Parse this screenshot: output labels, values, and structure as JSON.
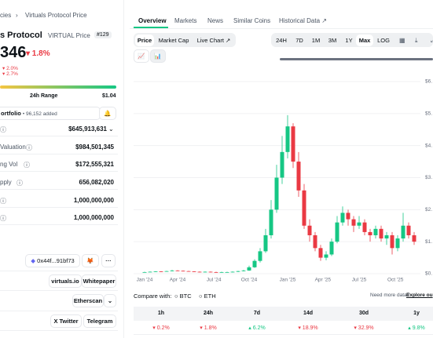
{
  "breadcrumb": [
    "cies",
    "Virtuals Protocol Price"
  ],
  "coin": {
    "name": "s Protocol",
    "symbol": "VIRTUAL Price",
    "rank": "#129",
    "price": "346",
    "change": "▾ 1.8%",
    "sub_changes": [
      "▾ 2.0%",
      "▾ 2.7%"
    ],
    "range_label": "24h Range",
    "range_high": "$1.04",
    "portfolio": "ortfolio",
    "portfolio_added": "• 96,152 added"
  },
  "stats": [
    {
      "value": "$645,913,631"
    },
    {
      "label": "Valuation",
      "value": "$984,501,345"
    },
    {
      "label": "ng Vol",
      "value": "$172,555,321"
    },
    {
      "label": "pply",
      "value": "656,082,020"
    },
    {
      "value": "1,000,000,000"
    },
    {
      "value": "1,000,000,000"
    }
  ],
  "links": {
    "contract": "0x44f...91bf73",
    "website": "virtuals.io",
    "whitepaper": "Whitepaper",
    "explorer": "Etherscan",
    "twitter": "X Twitter",
    "telegram": "Telegram"
  },
  "tabs": [
    "Overview",
    "Markets",
    "News",
    "Similar Coins",
    "Historical Data ↗"
  ],
  "chart_buttons": [
    "Price",
    "Market Cap",
    "Live Chart ↗"
  ],
  "ranges": [
    "24H",
    "7D",
    "1M",
    "3M",
    "1Y",
    "Max",
    "LOG"
  ],
  "compare": {
    "label": "Compare with:",
    "options": [
      "BTC",
      "ETH"
    ],
    "more": "Need more data?",
    "explore": "Explore ou"
  },
  "performance": {
    "headers": [
      "1h",
      "24h",
      "7d",
      "14d",
      "30d",
      "1y"
    ],
    "values": [
      "▾ 0.2%",
      "▾ 1.8%",
      "▴ 6.2%",
      "▾ 18.9%",
      "▾ 32.9%",
      "▴ 9.8%"
    ]
  },
  "chart_data": {
    "type": "candlestick",
    "categories": [
      null,
      null,
      null,
      null,
      null,
      null,
      null,
      null,
      null,
      null,
      null,
      null,
      null,
      null,
      null,
      null,
      null,
      null,
      null,
      null,
      null,
      null,
      null,
      null,
      null,
      null,
      null,
      null,
      null,
      null,
      null,
      null,
      null,
      null,
      null,
      null,
      null,
      null,
      null,
      null,
      null,
      null,
      null,
      null,
      null,
      null,
      null,
      null,
      null,
      null
    ],
    "open": [
      0.04,
      0.05,
      0.06,
      0.07,
      0.06,
      0.08,
      0.1,
      0.09,
      0.08,
      0.07,
      0.06,
      0.05,
      0.06,
      0.05,
      0.04,
      0.05,
      0.05,
      0.06,
      0.08,
      0.1,
      0.2,
      0.4,
      0.7,
      1.2,
      2.0,
      3.0,
      3.8,
      4.6,
      3.5,
      2.6,
      1.5,
      1.2,
      0.8,
      0.5,
      0.6,
      1.0,
      1.6,
      1.9,
      1.7,
      1.5,
      1.6,
      1.3,
      1.2,
      1.4,
      1.1,
      1.2,
      0.8,
      1.1,
      1.5,
      1.2
    ],
    "close": [
      0.05,
      0.06,
      0.07,
      0.06,
      0.08,
      0.1,
      0.09,
      0.08,
      0.07,
      0.06,
      0.05,
      0.06,
      0.05,
      0.04,
      0.05,
      0.05,
      0.06,
      0.08,
      0.1,
      0.2,
      0.4,
      0.7,
      1.2,
      2.0,
      3.0,
      3.8,
      4.6,
      3.5,
      2.6,
      1.5,
      1.2,
      0.8,
      0.5,
      0.6,
      1.0,
      1.6,
      1.9,
      1.7,
      1.5,
      1.6,
      1.3,
      1.2,
      1.4,
      1.1,
      1.2,
      0.8,
      1.1,
      1.5,
      1.2,
      1.0
    ],
    "high": [
      0.06,
      0.07,
      0.08,
      0.08,
      0.09,
      0.12,
      0.11,
      0.1,
      0.09,
      0.08,
      0.07,
      0.07,
      0.07,
      0.06,
      0.06,
      0.06,
      0.07,
      0.09,
      0.12,
      0.25,
      0.45,
      0.8,
      1.4,
      2.3,
      3.4,
      4.3,
      4.95,
      4.7,
      3.8,
      2.8,
      1.7,
      1.3,
      0.9,
      0.7,
      1.1,
      1.8,
      2.1,
      2.0,
      1.8,
      1.8,
      1.7,
      1.4,
      1.5,
      1.5,
      1.3,
      1.3,
      1.2,
      1.9,
      1.6,
      1.3
    ],
    "low": [
      0.04,
      0.05,
      0.05,
      0.05,
      0.06,
      0.07,
      0.08,
      0.07,
      0.06,
      0.05,
      0.04,
      0.04,
      0.04,
      0.03,
      0.03,
      0.04,
      0.04,
      0.05,
      0.07,
      0.09,
      0.18,
      0.35,
      0.65,
      1.1,
      1.9,
      2.8,
      3.6,
      3.3,
      2.4,
      1.4,
      1.0,
      0.7,
      0.4,
      0.42,
      0.55,
      0.95,
      1.5,
      1.5,
      1.3,
      1.4,
      1.2,
      1.0,
      1.1,
      1.0,
      0.9,
      0.6,
      0.7,
      1.0,
      1.1,
      0.9
    ],
    "up_color": "#16c784",
    "down_color": "#ea3943",
    "ylim": [
      0,
      6
    ],
    "yticks": [
      {
        "value": 0,
        "label": "$0."
      },
      {
        "value": 1,
        "label": "$1."
      },
      {
        "value": 2,
        "label": "$2."
      },
      {
        "value": 3,
        "label": "$3."
      },
      {
        "value": 4,
        "label": "$4."
      },
      {
        "value": 5,
        "label": "$5."
      },
      {
        "value": 6,
        "label": "$6."
      }
    ],
    "xticks": [
      {
        "value": 0,
        "label": "Jan '24"
      },
      {
        "value": 6,
        "label": "Apr '24"
      },
      {
        "value": 12.6,
        "label": "Jul '24"
      },
      {
        "value": 19,
        "label": "Oct '24"
      },
      {
        "value": 26,
        "label": "Jan '25"
      },
      {
        "value": 32.4,
        "label": "Apr '25"
      },
      {
        "value": 39,
        "label": "Jul '25"
      },
      {
        "value": 45.6,
        "label": "Oct '25"
      }
    ],
    "grid": true
  }
}
